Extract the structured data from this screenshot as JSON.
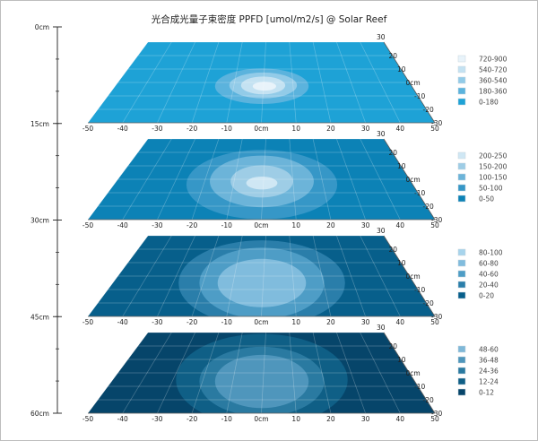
{
  "chart_data": {
    "type": "heatmap",
    "title": "光合成光量子束密度 PPFD [umol/m2/s] @ Solar Reef",
    "x_ticks": [
      "-50",
      "-40",
      "-30",
      "-20",
      "-10",
      "0cm",
      "10",
      "20",
      "30",
      "40",
      "50"
    ],
    "y_ticks": [
      "30",
      "20",
      "10",
      "0cm",
      "-10",
      "-20",
      "-30"
    ],
    "depth_axis": {
      "labels": [
        "0cm",
        "15cm",
        "30cm",
        "45cm",
        "60cm"
      ],
      "values": [
        0,
        15,
        30,
        45,
        60
      ]
    },
    "layers": [
      {
        "depth": "0cm",
        "legend": [
          "720-900",
          "540-720",
          "360-540",
          "180-360",
          "0-180"
        ],
        "colors": [
          "#e8f3fa",
          "#c4e2f2",
          "#92cbe8",
          "#5bb3dd",
          "#1ea2d6"
        ],
        "contour_radii": [
          [
            0.36,
            0.44
          ],
          [
            0.26,
            0.32
          ],
          [
            0.17,
            0.22
          ],
          [
            0.09,
            0.11
          ]
        ],
        "contour_offsets": [
          [
            0,
            -0.02
          ],
          [
            0.01,
            -0.03
          ],
          [
            0.01,
            -0.03
          ],
          [
            0.02,
            -0.02
          ]
        ]
      },
      {
        "depth": "15cm",
        "legend": [
          "200-250",
          "150-200",
          "100-150",
          "50-100",
          "0-50"
        ],
        "colors": [
          "#cfe7f4",
          "#9ecde6",
          "#6cb4d9",
          "#3697c7",
          "#0c82b6"
        ],
        "contour_radii": [
          [
            0.58,
            0.86
          ],
          [
            0.4,
            0.64
          ],
          [
            0.24,
            0.4
          ],
          [
            0.12,
            0.16
          ]
        ],
        "contour_offsets": [
          [
            0,
            0
          ],
          [
            0,
            -0.04
          ],
          [
            0,
            -0.04
          ],
          [
            0,
            -0.02
          ]
        ]
      },
      {
        "depth": "30cm",
        "legend": [
          "80-100",
          "60-80",
          "40-60",
          "20-40",
          "0-20"
        ],
        "colors": [
          "#a7d4ec",
          "#80bcdd",
          "#4e9dc6",
          "#2a7eaa",
          "#075f8b"
        ],
        "contour_radii": [
          [
            0.64,
            1.06
          ],
          [
            0.48,
            0.88
          ],
          [
            0.34,
            0.6
          ]
        ],
        "contour_offsets": [
          [
            0,
            0.02
          ],
          [
            0,
            0.02
          ],
          [
            0,
            0.02
          ]
        ]
      },
      {
        "depth": "45cm",
        "legend": [
          "48-60",
          "36-48",
          "24-36",
          "12-24",
          "0-12"
        ],
        "colors": [
          "#7fb8d8",
          "#4f96bc",
          "#2a7aa1",
          "#0f5f86",
          "#06456a"
        ],
        "contour_radii": [
          [
            0.66,
            1.14
          ],
          [
            0.48,
            0.86
          ],
          [
            0.36,
            0.66
          ]
        ],
        "contour_offsets": [
          [
            0,
            0.02
          ],
          [
            0,
            0.04
          ],
          [
            0,
            0.04
          ]
        ]
      }
    ]
  }
}
